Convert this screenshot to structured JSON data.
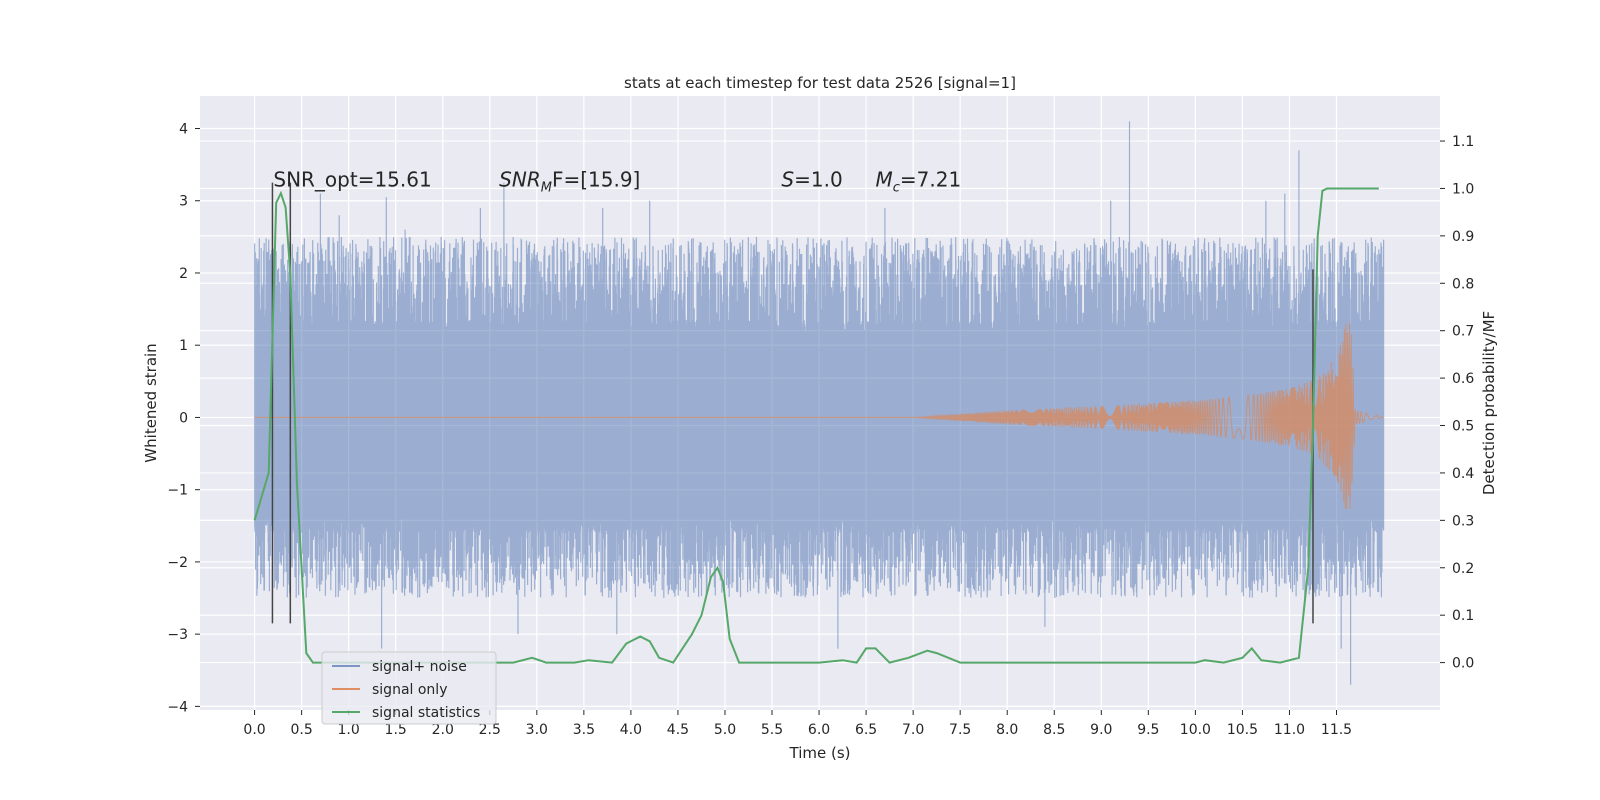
{
  "chart_data": {
    "type": "line",
    "title": "stats at each timestep for test data 2526 [signal=1]",
    "xlabel": "Time (s)",
    "ylabel": "Whitened strain",
    "ylabel_right": "Detection probability/MF",
    "xlim": [
      -0.58,
      12.6
    ],
    "ylim": [
      -4.05,
      4.45
    ],
    "ylim_right": [
      -0.1,
      1.195
    ],
    "x_ticks": [
      "0.0",
      "0.5",
      "1.0",
      "1.5",
      "2.0",
      "2.5",
      "3.0",
      "3.5",
      "4.0",
      "4.5",
      "5.0",
      "5.5",
      "6.0",
      "6.5",
      "7.0",
      "7.5",
      "8.0",
      "8.5",
      "9.0",
      "9.5",
      "10.0",
      "10.5",
      "11.0",
      "11.5"
    ],
    "y_ticks": [
      "−4",
      "−3",
      "−2",
      "−1",
      "0",
      "1",
      "2",
      "3",
      "4"
    ],
    "y_ticks_right": [
      "0.0",
      "0.1",
      "0.2",
      "0.3",
      "0.4",
      "0.5",
      "0.6",
      "0.7",
      "0.8",
      "0.9",
      "1.0",
      "1.1"
    ],
    "grid": true,
    "legend_position": "lower-left",
    "annotations": [
      {
        "prefix": "SNR_opt=15.61",
        "var": "",
        "sub": "",
        "suffix": "",
        "x": 0.2,
        "y": 3.2
      },
      {
        "prefix": "",
        "var": "SNR",
        "sub": "M",
        "suffix": "F=[15.9]",
        "x": 2.6,
        "y": 3.2
      },
      {
        "prefix": "",
        "var": "S",
        "sub": "",
        "suffix": "=1.0",
        "x": 5.6,
        "y": 3.2
      },
      {
        "prefix": "",
        "var": "M",
        "sub": "c",
        "suffix": "=7.21",
        "x": 6.6,
        "y": 3.2
      }
    ],
    "vlines": [
      {
        "x": 0.19,
        "ymin": -2.85,
        "ymax": 3.25
      },
      {
        "x": 0.38,
        "ymin": -2.85,
        "ymax": 3.25
      },
      {
        "x": 11.25,
        "ymin": -2.85,
        "ymax": 2.05
      }
    ],
    "series": [
      {
        "name": "signal+ noise",
        "color": "#4c72b0",
        "opacity": 0.5,
        "envelope": {
          "x": [
            0.0,
            12.0
          ],
          "inner_hi": 1.35,
          "inner_lo": -1.6,
          "peaks": [
            {
              "x": 0.03,
              "y": 1.9
            },
            {
              "x": 0.1,
              "y": -2.4
            },
            {
              "x": 0.7,
              "y": 3.1
            },
            {
              "x": 0.9,
              "y": 2.8
            },
            {
              "x": 1.35,
              "y": -3.2
            },
            {
              "x": 1.4,
              "y": 3.05
            },
            {
              "x": 1.6,
              "y": 2.6
            },
            {
              "x": 2.4,
              "y": 2.9
            },
            {
              "x": 2.65,
              "y": 3.25
            },
            {
              "x": 2.8,
              "y": -3.0
            },
            {
              "x": 3.85,
              "y": -3.0
            },
            {
              "x": 3.7,
              "y": 2.9
            },
            {
              "x": 4.2,
              "y": 3.0
            },
            {
              "x": 6.2,
              "y": -3.2
            },
            {
              "x": 6.7,
              "y": 2.9
            },
            {
              "x": 8.4,
              "y": -2.9
            },
            {
              "x": 9.3,
              "y": 4.1
            },
            {
              "x": 9.1,
              "y": 3.0
            },
            {
              "x": 10.75,
              "y": 3.0
            },
            {
              "x": 10.95,
              "y": 3.1
            },
            {
              "x": 11.1,
              "y": 3.7
            },
            {
              "x": 11.65,
              "y": -3.7
            },
            {
              "x": 11.55,
              "y": -3.2
            }
          ]
        }
      },
      {
        "name": "signal only",
        "color": "#dd8452",
        "opacity": 0.7,
        "chirp": {
          "start_x": 7.0,
          "merger_x": 11.65,
          "amplitude_points": [
            [
              7.0,
              0.0
            ],
            [
              8.0,
              0.1
            ],
            [
              9.0,
              0.16
            ],
            [
              10.0,
              0.24
            ],
            [
              10.5,
              0.3
            ],
            [
              11.0,
              0.4
            ],
            [
              11.3,
              0.55
            ],
            [
              11.5,
              0.85
            ],
            [
              11.6,
              1.3
            ],
            [
              11.65,
              1.35
            ],
            [
              11.7,
              0.1
            ],
            [
              12.0,
              0.0
            ]
          ]
        }
      },
      {
        "name": "signal statistics",
        "color": "#55a868",
        "axis": "right",
        "x": [
          0.0,
          0.15,
          0.23,
          0.28,
          0.33,
          0.38,
          0.45,
          0.55,
          0.62,
          1.0,
          2.0,
          2.75,
          2.95,
          3.1,
          3.4,
          3.55,
          3.8,
          3.95,
          4.1,
          4.2,
          4.3,
          4.45,
          4.65,
          4.75,
          4.85,
          4.92,
          4.98,
          5.05,
          5.15,
          5.3,
          5.6,
          6.0,
          6.25,
          6.4,
          6.5,
          6.6,
          6.75,
          6.95,
          7.15,
          7.25,
          7.5,
          8.0,
          9.0,
          10.0,
          10.1,
          10.3,
          10.5,
          10.6,
          10.7,
          10.9,
          11.1,
          11.2,
          11.25,
          11.3,
          11.35,
          11.4,
          11.5,
          11.65,
          11.8,
          11.95
        ],
        "values": [
          0.3,
          0.4,
          0.97,
          0.99,
          0.96,
          0.82,
          0.38,
          0.02,
          0.0,
          0.0,
          0.0,
          0.0,
          0.01,
          0.0,
          0.0,
          0.005,
          0.0,
          0.04,
          0.055,
          0.045,
          0.01,
          0.0,
          0.06,
          0.1,
          0.18,
          0.2,
          0.17,
          0.05,
          0.0,
          0.0,
          0.0,
          0.0,
          0.005,
          0.0,
          0.03,
          0.03,
          0.0,
          0.01,
          0.025,
          0.02,
          0.0,
          0.0,
          0.0,
          0.0,
          0.005,
          0.0,
          0.01,
          0.03,
          0.005,
          0.0,
          0.01,
          0.2,
          0.5,
          0.9,
          0.995,
          1.0,
          1.0,
          1.0,
          1.0,
          1.0
        ]
      }
    ]
  }
}
